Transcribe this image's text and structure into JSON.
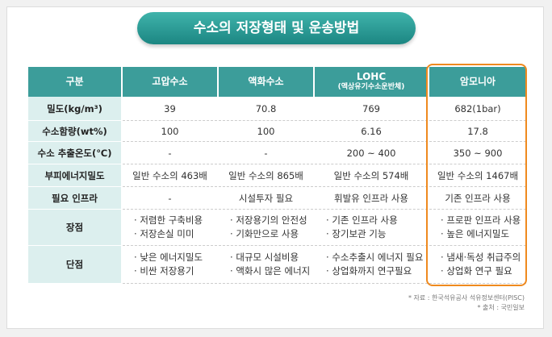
{
  "title": "수소의 저장형태 및 운송방법",
  "table": {
    "headers": [
      [
        "구분"
      ],
      [
        "고압수소"
      ],
      [
        "액화수소"
      ],
      [
        "LOHC",
        "(액상유기수소운반체)"
      ],
      [
        "암모니아"
      ]
    ],
    "rows": [
      {
        "label": "밀도(kg/m³)",
        "cells": [
          "39",
          "70.8",
          "769",
          "682(1bar)"
        ]
      },
      {
        "label": "수소함량(wt%)",
        "cells": [
          "100",
          "100",
          "6.16",
          "17.8"
        ]
      },
      {
        "label": "수소 추출온도(℃)",
        "cells": [
          "-",
          "-",
          "200 ~ 400",
          "350 ~ 900"
        ]
      },
      {
        "label": "부피에너지밀도",
        "cells": [
          "일반 수소의 463배",
          "일반 수소의 865배",
          "일반 수소의 574배",
          "일반 수소의 1467배"
        ]
      },
      {
        "label": "필요 인프라",
        "cells": [
          "-",
          "시설투자 필요",
          "휘발유 인프라 사용",
          "기존 인프라 사용"
        ]
      },
      {
        "label": "장점",
        "cells": [
          [
            "저렴한 구축비용",
            "저장손실 미미"
          ],
          [
            "저장용기의 안전성",
            "기화만으로 사용"
          ],
          [
            "기존 인프라 사용",
            "장기보관 기능"
          ],
          [
            "프로판 인프라 사용",
            "높은 에너지밀도"
          ]
        ]
      },
      {
        "label": "단점",
        "cells": [
          [
            "낮은 에너지밀도",
            "비싼 저장용기"
          ],
          [
            "대규모 시설비용",
            "액화시 많은 에너지"
          ],
          [
            "수소추출시 에너지 필요",
            "상업화까지 연구필요"
          ],
          [
            "냄새·독성 취급주의",
            "상업화 연구 필요"
          ]
        ]
      }
    ]
  },
  "footer": [
    "* 자료 : 한국석유공사 석유정보센터(PISC)",
    "* 출처 : 국민일보"
  ]
}
